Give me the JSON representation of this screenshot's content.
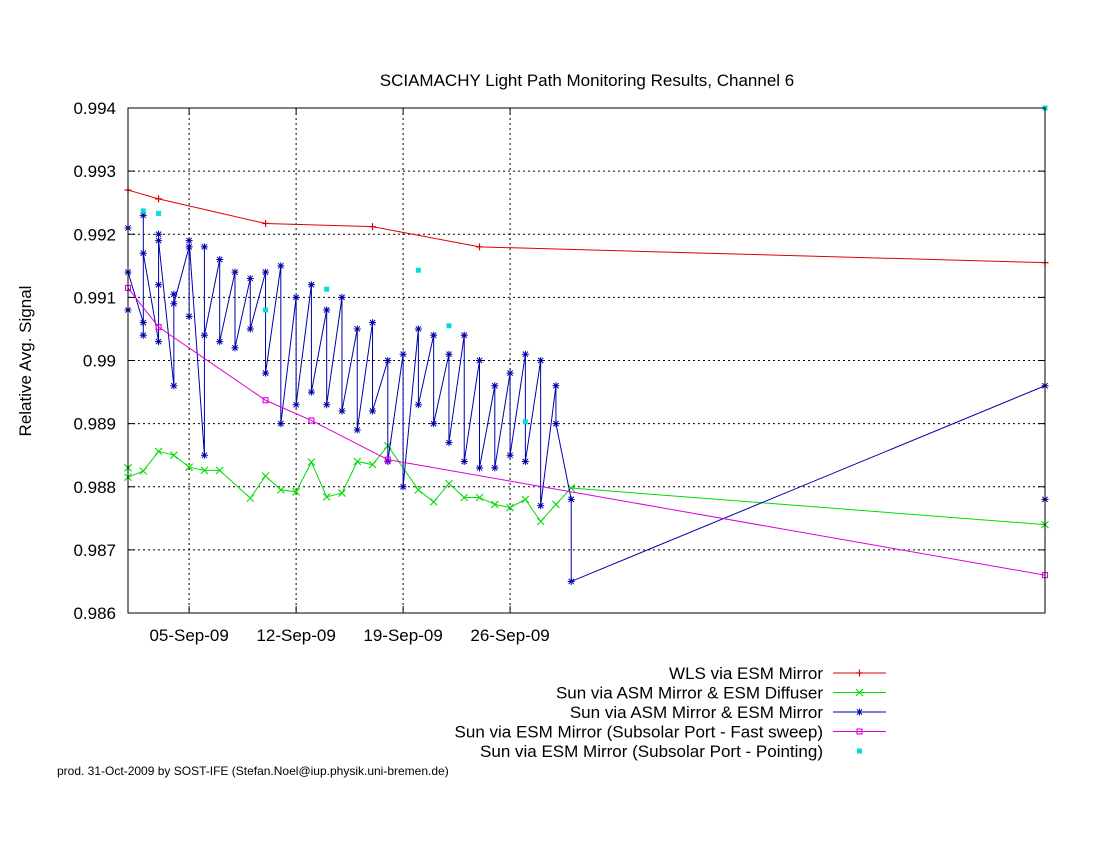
{
  "chart_data": {
    "type": "line",
    "title": "SCIAMACHY Light Path Monitoring Results, Channel 6",
    "xlabel": "",
    "ylabel": "Relative Avg. Signal",
    "xlim": [
      "2009-09-01",
      "2009-10-31"
    ],
    "x_ticks": [
      "05-Sep-09",
      "12-Sep-09",
      "19-Sep-09",
      "26-Sep-09"
    ],
    "ylim": [
      0.986,
      0.994
    ],
    "y_ticks": [
      "0.986",
      "0.987",
      "0.988",
      "0.989",
      "0.99",
      "0.991",
      "0.992",
      "0.993",
      "0.994"
    ],
    "grid": true,
    "legend_position": "bottom-right",
    "series": [
      {
        "name": "WLS via ESM Mirror",
        "color": "#dd0000",
        "marker": "plus",
        "points": [
          [
            "2009-09-01",
            0.9927
          ],
          [
            "2009-09-03",
            0.99256
          ],
          [
            "2009-09-10",
            0.99217
          ],
          [
            "2009-09-17",
            0.99212
          ],
          [
            "2009-09-24",
            0.9918
          ],
          [
            "2009-10-31",
            0.99155
          ]
        ]
      },
      {
        "name": "Sun via ASM Mirror & ESM Diffuser",
        "color": "#00dd00",
        "marker": "cross",
        "points": [
          [
            "2009-09-01",
            0.9883
          ],
          [
            "2009-09-01",
            0.98815
          ],
          [
            "2009-09-02",
            0.98825
          ],
          [
            "2009-09-03",
            0.98856
          ],
          [
            "2009-09-04",
            0.9885
          ],
          [
            "2009-09-05",
            0.98831
          ],
          [
            "2009-09-06",
            0.98826
          ],
          [
            "2009-09-07",
            0.98826
          ],
          [
            "2009-09-09",
            0.98782
          ],
          [
            "2009-09-10",
            0.98817
          ],
          [
            "2009-09-11",
            0.98795
          ],
          [
            "2009-09-12",
            0.98792
          ],
          [
            "2009-09-13",
            0.98839
          ],
          [
            "2009-09-14",
            0.98784
          ],
          [
            "2009-09-15",
            0.9879
          ],
          [
            "2009-09-16",
            0.9884
          ],
          [
            "2009-09-17",
            0.98835
          ],
          [
            "2009-09-18",
            0.98865
          ],
          [
            "2009-09-20",
            0.98795
          ],
          [
            "2009-09-21",
            0.98776
          ],
          [
            "2009-09-22",
            0.98805
          ],
          [
            "2009-09-23",
            0.98783
          ],
          [
            "2009-09-24",
            0.98783
          ],
          [
            "2009-09-25",
            0.98772
          ],
          [
            "2009-09-26",
            0.98767
          ],
          [
            "2009-09-27",
            0.9878
          ],
          [
            "2009-09-28",
            0.98745
          ],
          [
            "2009-09-29",
            0.98772
          ],
          [
            "2009-09-30",
            0.98798
          ],
          [
            "2009-10-31",
            0.9874
          ]
        ]
      },
      {
        "name": "Sun via ASM Mirror & ESM Mirror",
        "color": "#0000aa",
        "marker": "star",
        "points": [
          [
            "2009-09-01",
            0.9921
          ],
          [
            "2009-09-01",
            0.9908
          ],
          [
            "2009-09-01",
            0.9914
          ],
          [
            "2009-09-02",
            0.9906
          ],
          [
            "2009-09-02",
            0.9923
          ],
          [
            "2009-09-02",
            0.9904
          ],
          [
            "2009-09-02",
            0.9917
          ],
          [
            "2009-09-03",
            0.9903
          ],
          [
            "2009-09-03",
            0.992
          ],
          [
            "2009-09-03",
            0.9912
          ],
          [
            "2009-09-03",
            0.9919
          ],
          [
            "2009-09-04",
            0.9896
          ],
          [
            "2009-09-04",
            0.99105
          ],
          [
            "2009-09-04",
            0.9909
          ],
          [
            "2009-09-05",
            0.9918
          ],
          [
            "2009-09-05",
            0.9907
          ],
          [
            "2009-09-05",
            0.9919
          ],
          [
            "2009-09-06",
            0.9885
          ],
          [
            "2009-09-06",
            0.9918
          ],
          [
            "2009-09-06",
            0.9904
          ],
          [
            "2009-09-07",
            0.9916
          ],
          [
            "2009-09-07",
            0.9903
          ],
          [
            "2009-09-08",
            0.9914
          ],
          [
            "2009-09-08",
            0.9902
          ],
          [
            "2009-09-09",
            0.9913
          ],
          [
            "2009-09-09",
            0.9905
          ],
          [
            "2009-09-10",
            0.9914
          ],
          [
            "2009-09-10",
            0.9898
          ],
          [
            "2009-09-11",
            0.9915
          ],
          [
            "2009-09-11",
            0.989
          ],
          [
            "2009-09-12",
            0.991
          ],
          [
            "2009-09-12",
            0.9893
          ],
          [
            "2009-09-13",
            0.9912
          ],
          [
            "2009-09-13",
            0.9895
          ],
          [
            "2009-09-14",
            0.9908
          ],
          [
            "2009-09-14",
            0.9893
          ],
          [
            "2009-09-15",
            0.991
          ],
          [
            "2009-09-15",
            0.9892
          ],
          [
            "2009-09-16",
            0.9905
          ],
          [
            "2009-09-16",
            0.9889
          ],
          [
            "2009-09-17",
            0.9906
          ],
          [
            "2009-09-17",
            0.9892
          ],
          [
            "2009-09-18",
            0.99
          ],
          [
            "2009-09-18",
            0.9884
          ],
          [
            "2009-09-19",
            0.9901
          ],
          [
            "2009-09-19",
            0.988
          ],
          [
            "2009-09-20",
            0.9905
          ],
          [
            "2009-09-20",
            0.9893
          ],
          [
            "2009-09-21",
            0.9904
          ],
          [
            "2009-09-21",
            0.989
          ],
          [
            "2009-09-22",
            0.9901
          ],
          [
            "2009-09-22",
            0.9887
          ],
          [
            "2009-09-23",
            0.9904
          ],
          [
            "2009-09-23",
            0.9884
          ],
          [
            "2009-09-24",
            0.99
          ],
          [
            "2009-09-24",
            0.9883
          ],
          [
            "2009-09-25",
            0.9896
          ],
          [
            "2009-09-25",
            0.9883
          ],
          [
            "2009-09-26",
            0.9898
          ],
          [
            "2009-09-26",
            0.9885
          ],
          [
            "2009-09-27",
            0.9901
          ],
          [
            "2009-09-27",
            0.9884
          ],
          [
            "2009-09-28",
            0.99
          ],
          [
            "2009-09-28",
            0.9877
          ],
          [
            "2009-09-29",
            0.9896
          ],
          [
            "2009-09-29",
            0.989
          ],
          [
            "2009-09-30",
            0.9878
          ],
          [
            "2009-09-30",
            0.9865
          ],
          [
            "2009-10-31",
            0.9896
          ],
          [
            "2009-10-31",
            0.9878
          ]
        ]
      },
      {
        "name": "Sun via ESM Mirror (Subsolar Port - Fast sweep)",
        "color": "#dd00dd",
        "marker": "square",
        "points": [
          [
            "2009-09-01",
            0.99115
          ],
          [
            "2009-09-03",
            0.99053
          ],
          [
            "2009-09-10",
            0.98937
          ],
          [
            "2009-09-13",
            0.98905
          ],
          [
            "2009-09-18",
            0.98843
          ],
          [
            "2009-10-31",
            0.9866
          ]
        ]
      },
      {
        "name": "Sun via ESM Mirror (Subsolar Port - Pointing)",
        "color": "#00dddd",
        "marker": "dot",
        "points": [
          [
            "2009-09-02",
            0.99237
          ],
          [
            "2009-09-03",
            0.99233
          ],
          [
            "2009-09-10",
            0.9908
          ],
          [
            "2009-09-14",
            0.99113
          ],
          [
            "2009-09-20",
            0.99143
          ],
          [
            "2009-09-22",
            0.99055
          ],
          [
            "2009-09-27",
            0.98903
          ],
          [
            "2009-10-31",
            0.994
          ]
        ]
      }
    ]
  },
  "footer": {
    "credit": "prod. 31-Oct-2009 by SOST-IFE (Stefan.Noel@iup.physik.uni-bremen.de)"
  }
}
